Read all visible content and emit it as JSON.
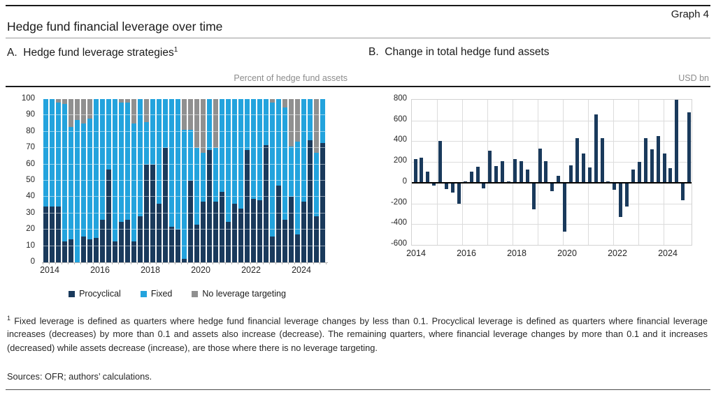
{
  "header": {
    "title": "Hedge fund financial leverage over time",
    "graph_label": "Graph 4"
  },
  "panel_a": {
    "title_prefix": "A.",
    "title": "Hedge fund leverage strategies",
    "title_superscript": "1",
    "unit": "Percent of hedge fund assets"
  },
  "panel_b": {
    "title_prefix": "B.",
    "title": "Change in total hedge fund assets",
    "unit": "USD bn"
  },
  "colors": {
    "procyclical": "#1a3a5c",
    "fixed": "#23a3dd",
    "no_leverage_targeting": "#909090",
    "gridline": "#dcdcdc",
    "zero_line": "#000000"
  },
  "legend": [
    {
      "label": "Procyclical",
      "color": "#1a3a5c"
    },
    {
      "label": "Fixed",
      "color": "#23a3dd"
    },
    {
      "label": "No leverage targeting",
      "color": "#909090"
    }
  ],
  "chart_data": [
    {
      "type": "bar",
      "subtype": "stacked_100",
      "title": "Hedge fund leverage strategies",
      "ylabel": "Percent of hedge fund assets",
      "ylim": [
        0,
        100
      ],
      "yticks": [
        0,
        10,
        20,
        30,
        40,
        50,
        60,
        70,
        80,
        90,
        100
      ],
      "xticks": [
        2014,
        2016,
        2018,
        2020,
        2022,
        2024
      ],
      "grid": true,
      "legend_position": "bottom",
      "categories": [
        "2014Q1",
        "2014Q2",
        "2014Q3",
        "2014Q4",
        "2015Q1",
        "2015Q2",
        "2015Q3",
        "2015Q4",
        "2016Q1",
        "2016Q2",
        "2016Q3",
        "2016Q4",
        "2017Q1",
        "2017Q2",
        "2017Q3",
        "2017Q4",
        "2018Q1",
        "2018Q2",
        "2018Q3",
        "2018Q4",
        "2019Q1",
        "2019Q2",
        "2019Q3",
        "2019Q4",
        "2020Q1",
        "2020Q2",
        "2020Q3",
        "2020Q4",
        "2021Q1",
        "2021Q2",
        "2021Q3",
        "2021Q4",
        "2022Q1",
        "2022Q2",
        "2022Q3",
        "2022Q4",
        "2023Q1",
        "2023Q2",
        "2023Q3",
        "2023Q4",
        "2024Q1",
        "2024Q2",
        "2024Q3",
        "2024Q4",
        "2025Q1"
      ],
      "series": [
        {
          "name": "Procyclical",
          "values": [
            34,
            34,
            34,
            13,
            14,
            0,
            16,
            14,
            15,
            26,
            57,
            13,
            25,
            26,
            13,
            28,
            60,
            60,
            36,
            70,
            22,
            20,
            2,
            50,
            23,
            37,
            69,
            37,
            43,
            25,
            36,
            33,
            69,
            39,
            38,
            72,
            16,
            47,
            26,
            40,
            17,
            37,
            75,
            28,
            73
          ]
        },
        {
          "name": "Fixed",
          "values": [
            66,
            66,
            64,
            84,
            69,
            87,
            69,
            74,
            85,
            74,
            43,
            87,
            73,
            72,
            72,
            72,
            26,
            40,
            64,
            30,
            78,
            80,
            79,
            31,
            47,
            30,
            31,
            33,
            57,
            75,
            64,
            67,
            31,
            61,
            62,
            28,
            82,
            53,
            69,
            31,
            57,
            63,
            25,
            39,
            27
          ]
        },
        {
          "name": "No leverage targeting",
          "values": [
            0,
            0,
            2,
            3,
            17,
            13,
            15,
            12,
            0,
            0,
            0,
            0,
            2,
            2,
            15,
            0,
            14,
            0,
            0,
            0,
            0,
            0,
            19,
            19,
            30,
            33,
            0,
            30,
            0,
            0,
            0,
            0,
            0,
            0,
            0,
            0,
            2,
            0,
            5,
            29,
            26,
            0,
            0,
            33,
            0
          ]
        }
      ]
    },
    {
      "type": "bar",
      "title": "Change in total hedge fund assets",
      "ylabel": "USD bn",
      "ylim": [
        -600,
        800
      ],
      "yticks": [
        -600,
        -400,
        -200,
        0,
        200,
        400,
        600,
        800
      ],
      "xticks": [
        2014,
        2016,
        2018,
        2020,
        2022,
        2024
      ],
      "grid": true,
      "categories": [
        "2014Q1",
        "2014Q2",
        "2014Q3",
        "2014Q4",
        "2015Q1",
        "2015Q2",
        "2015Q3",
        "2015Q4",
        "2016Q1",
        "2016Q2",
        "2016Q3",
        "2016Q4",
        "2017Q1",
        "2017Q2",
        "2017Q3",
        "2017Q4",
        "2018Q1",
        "2018Q2",
        "2018Q3",
        "2018Q4",
        "2019Q1",
        "2019Q2",
        "2019Q3",
        "2019Q4",
        "2020Q1",
        "2020Q2",
        "2020Q3",
        "2020Q4",
        "2021Q1",
        "2021Q2",
        "2021Q3",
        "2021Q4",
        "2022Q1",
        "2022Q2",
        "2022Q3",
        "2022Q4",
        "2023Q1",
        "2023Q2",
        "2023Q3",
        "2023Q4",
        "2024Q1",
        "2024Q2",
        "2024Q3",
        "2024Q4",
        "2025Q1"
      ],
      "values": [
        230,
        240,
        110,
        -30,
        400,
        -60,
        -95,
        -205,
        15,
        110,
        155,
        -55,
        310,
        160,
        210,
        15,
        230,
        205,
        125,
        -260,
        330,
        210,
        -85,
        65,
        -470,
        165,
        430,
        280,
        150,
        660,
        430,
        15,
        -65,
        -330,
        -230,
        125,
        200,
        430,
        320,
        450,
        280,
        140,
        800,
        -170,
        680
      ]
    }
  ],
  "footnote": {
    "marker": "1",
    "text": " Fixed leverage is defined as quarters where hedge fund financial leverage changes by less than 0.1. Procyclical leverage is defined as quarters where financial leverage increases (decreases) by more than 0.1 and assets also increase (decrease). The remaining quarters, where financial leverage changes by more than 0.1 and it increases (decreased) while assets decrease (increase), are those where there is no leverage targeting."
  },
  "sources": "Sources: OFR; authors’ calculations."
}
